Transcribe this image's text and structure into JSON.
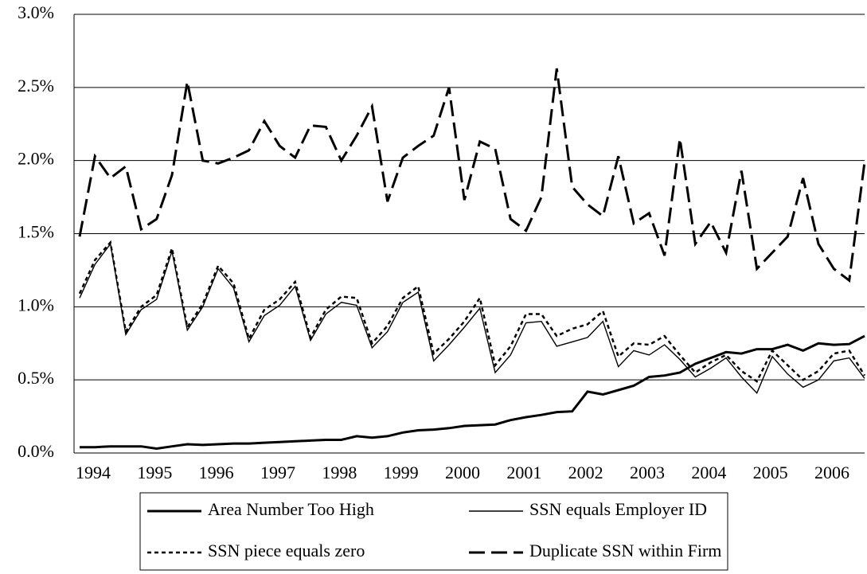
{
  "chart_data": {
    "type": "line",
    "categories": [
      "1994",
      null,
      null,
      null,
      "1995",
      null,
      null,
      null,
      "1996",
      null,
      null,
      null,
      "1997",
      null,
      null,
      null,
      "1998",
      null,
      null,
      null,
      "1999",
      null,
      null,
      null,
      "2000",
      null,
      null,
      null,
      "2001",
      null,
      null,
      null,
      "2002",
      null,
      null,
      null,
      "2003",
      null,
      null,
      null,
      "2004",
      null,
      null,
      null,
      "2005",
      null,
      null,
      null,
      "2006",
      null,
      null,
      null
    ],
    "series": [
      {
        "name": "Area Number Too High",
        "color": "#000000",
        "values": [
          0.04,
          0.04,
          0.045,
          0.045,
          0.045,
          0.03,
          0.045,
          0.06,
          0.055,
          0.06,
          0.065,
          0.065,
          0.07,
          0.075,
          0.08,
          0.085,
          0.09,
          0.09,
          0.115,
          0.105,
          0.115,
          0.14,
          0.155,
          0.16,
          0.17,
          0.185,
          0.19,
          0.195,
          0.225,
          0.245,
          0.26,
          0.28,
          0.285,
          0.42,
          0.4,
          0.43,
          0.46,
          0.52,
          0.53,
          0.55,
          0.61,
          0.65,
          0.69,
          0.68,
          0.71,
          0.71,
          0.74,
          0.7,
          0.75,
          0.74,
          0.745,
          0.8
        ]
      },
      {
        "name": "SSN equals Employer ID",
        "color": "#000000",
        "values": [
          1.06,
          1.29,
          1.43,
          0.81,
          0.98,
          1.05,
          1.38,
          0.84,
          1.0,
          1.26,
          1.13,
          0.76,
          0.94,
          1.01,
          1.14,
          0.77,
          0.95,
          1.03,
          1.01,
          0.72,
          0.83,
          1.03,
          1.1,
          0.63,
          0.74,
          0.86,
          0.99,
          0.55,
          0.67,
          0.89,
          0.9,
          0.73,
          0.76,
          0.79,
          0.9,
          0.59,
          0.7,
          0.67,
          0.74,
          0.64,
          0.52,
          0.58,
          0.65,
          0.52,
          0.41,
          0.66,
          0.54,
          0.45,
          0.5,
          0.63,
          0.65,
          0.51
        ]
      },
      {
        "name": "SSN piece equals zero",
        "color": "#000000",
        "values": [
          1.09,
          1.32,
          1.44,
          0.83,
          1.0,
          1.08,
          1.4,
          0.86,
          1.02,
          1.28,
          1.16,
          0.78,
          0.98,
          1.05,
          1.17,
          0.79,
          0.98,
          1.07,
          1.06,
          0.75,
          0.87,
          1.06,
          1.14,
          0.68,
          0.78,
          0.9,
          1.06,
          0.6,
          0.73,
          0.95,
          0.95,
          0.8,
          0.85,
          0.88,
          0.97,
          0.66,
          0.75,
          0.74,
          0.8,
          0.67,
          0.55,
          0.62,
          0.67,
          0.56,
          0.49,
          0.7,
          0.6,
          0.5,
          0.56,
          0.68,
          0.7,
          0.53
        ]
      },
      {
        "name": "Duplicate SSN within Firm",
        "color": "#000000",
        "values": [
          1.48,
          2.03,
          1.88,
          1.96,
          1.53,
          1.6,
          1.9,
          2.54,
          2.0,
          1.98,
          2.02,
          2.07,
          2.27,
          2.1,
          2.02,
          2.24,
          2.23,
          2.0,
          2.17,
          2.37,
          1.72,
          2.02,
          2.1,
          2.17,
          2.5,
          1.73,
          2.13,
          2.08,
          1.6,
          1.52,
          1.75,
          2.63,
          1.82,
          1.7,
          1.62,
          2.03,
          1.57,
          1.64,
          1.35,
          2.15,
          1.43,
          1.58,
          1.37,
          1.93,
          1.26,
          1.37,
          1.48,
          1.88,
          1.43,
          1.26,
          1.18,
          1.99
        ]
      }
    ],
    "ylim": [
      0,
      3
    ],
    "yticks": [
      {
        "value": 0,
        "label": "0.0%"
      },
      {
        "value": 0.5,
        "label": "0.5%"
      },
      {
        "value": 1,
        "label": "1.0%"
      },
      {
        "value": 1.5,
        "label": "1.5%"
      },
      {
        "value": 2,
        "label": "2.0%"
      },
      {
        "value": 2.5,
        "label": "2.5%"
      },
      {
        "value": 3,
        "label": "3.0%"
      }
    ],
    "grid": true,
    "legend": "bottom"
  }
}
